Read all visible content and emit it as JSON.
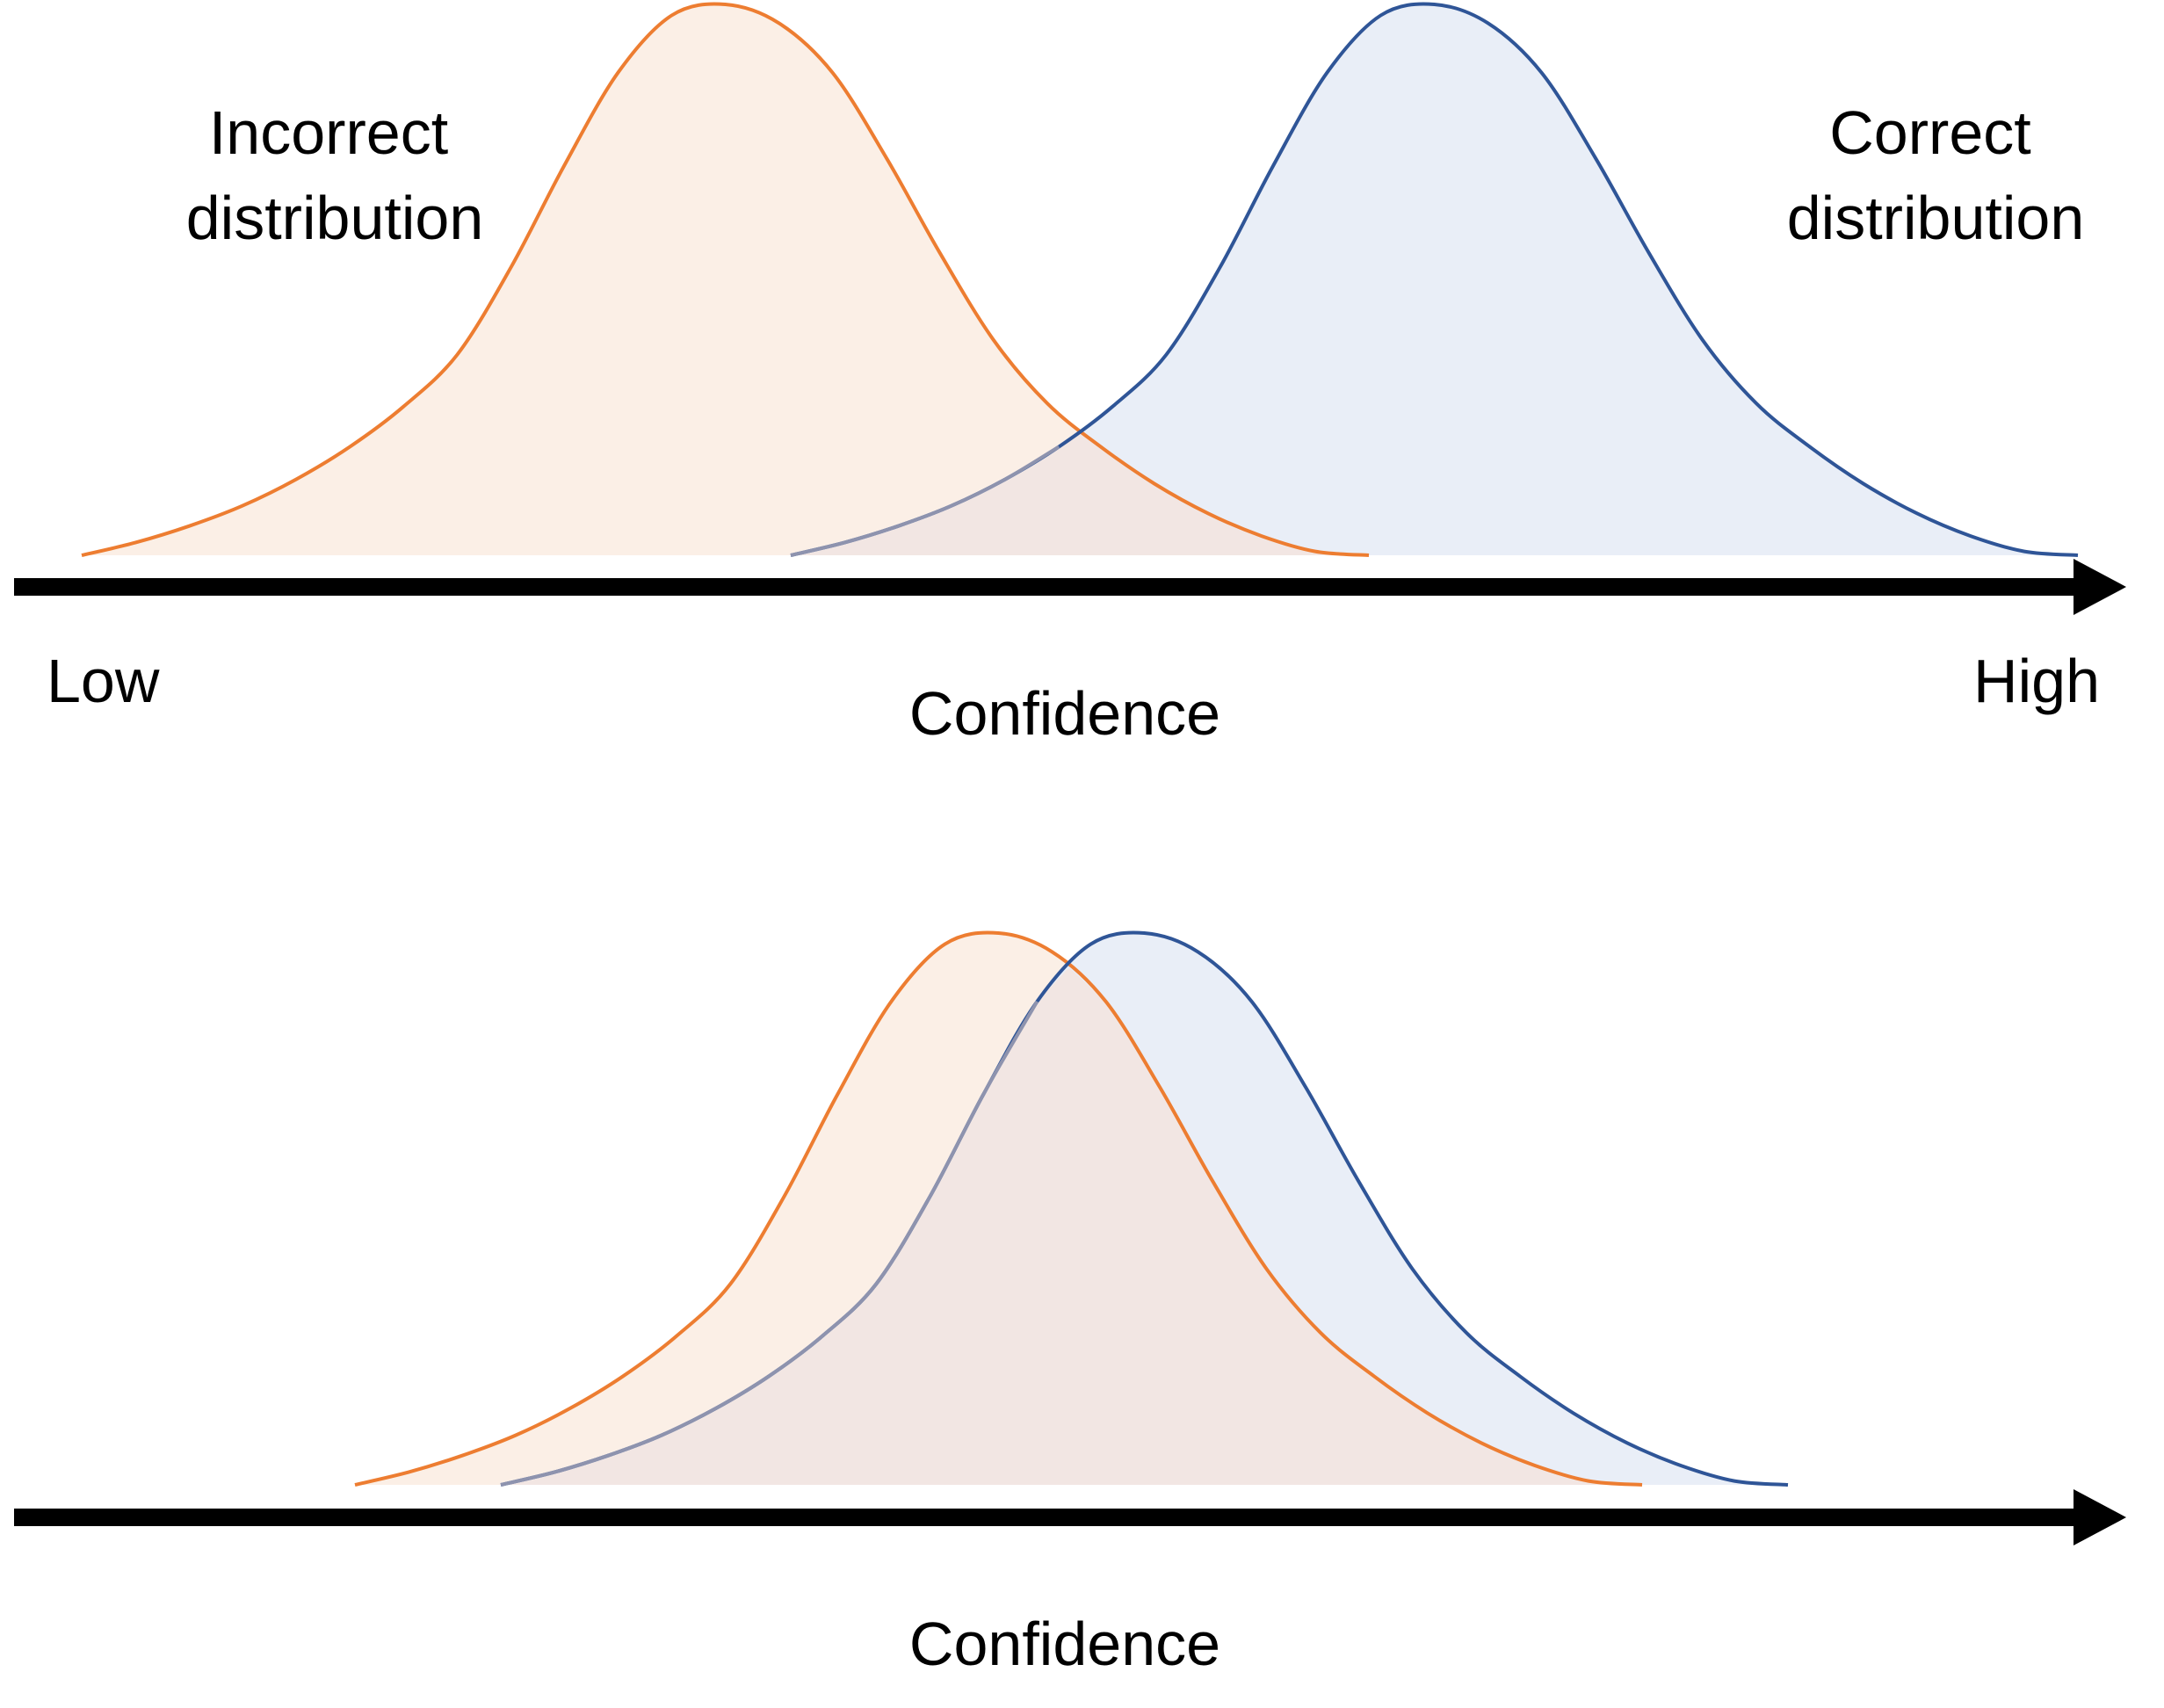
{
  "top_panel": {
    "incorrect_label_line1": "Incorrect",
    "incorrect_label_line2": "distribution",
    "correct_label_line1": "Correct",
    "correct_label_line2": "distribution",
    "axis_low": "Low",
    "axis_high": "High",
    "axis_title": "Confidence"
  },
  "bottom_panel": {
    "axis_title": "Confidence"
  },
  "colors": {
    "incorrect_stroke": "#ED7D31",
    "incorrect_fill": "#FBEFE6",
    "correct_stroke": "#2F5597",
    "correct_fill": "#E9EEF7",
    "overlap_fill": "#F2E6E3",
    "overlap_stroke": "#8E93AE",
    "axis": "#000000"
  }
}
